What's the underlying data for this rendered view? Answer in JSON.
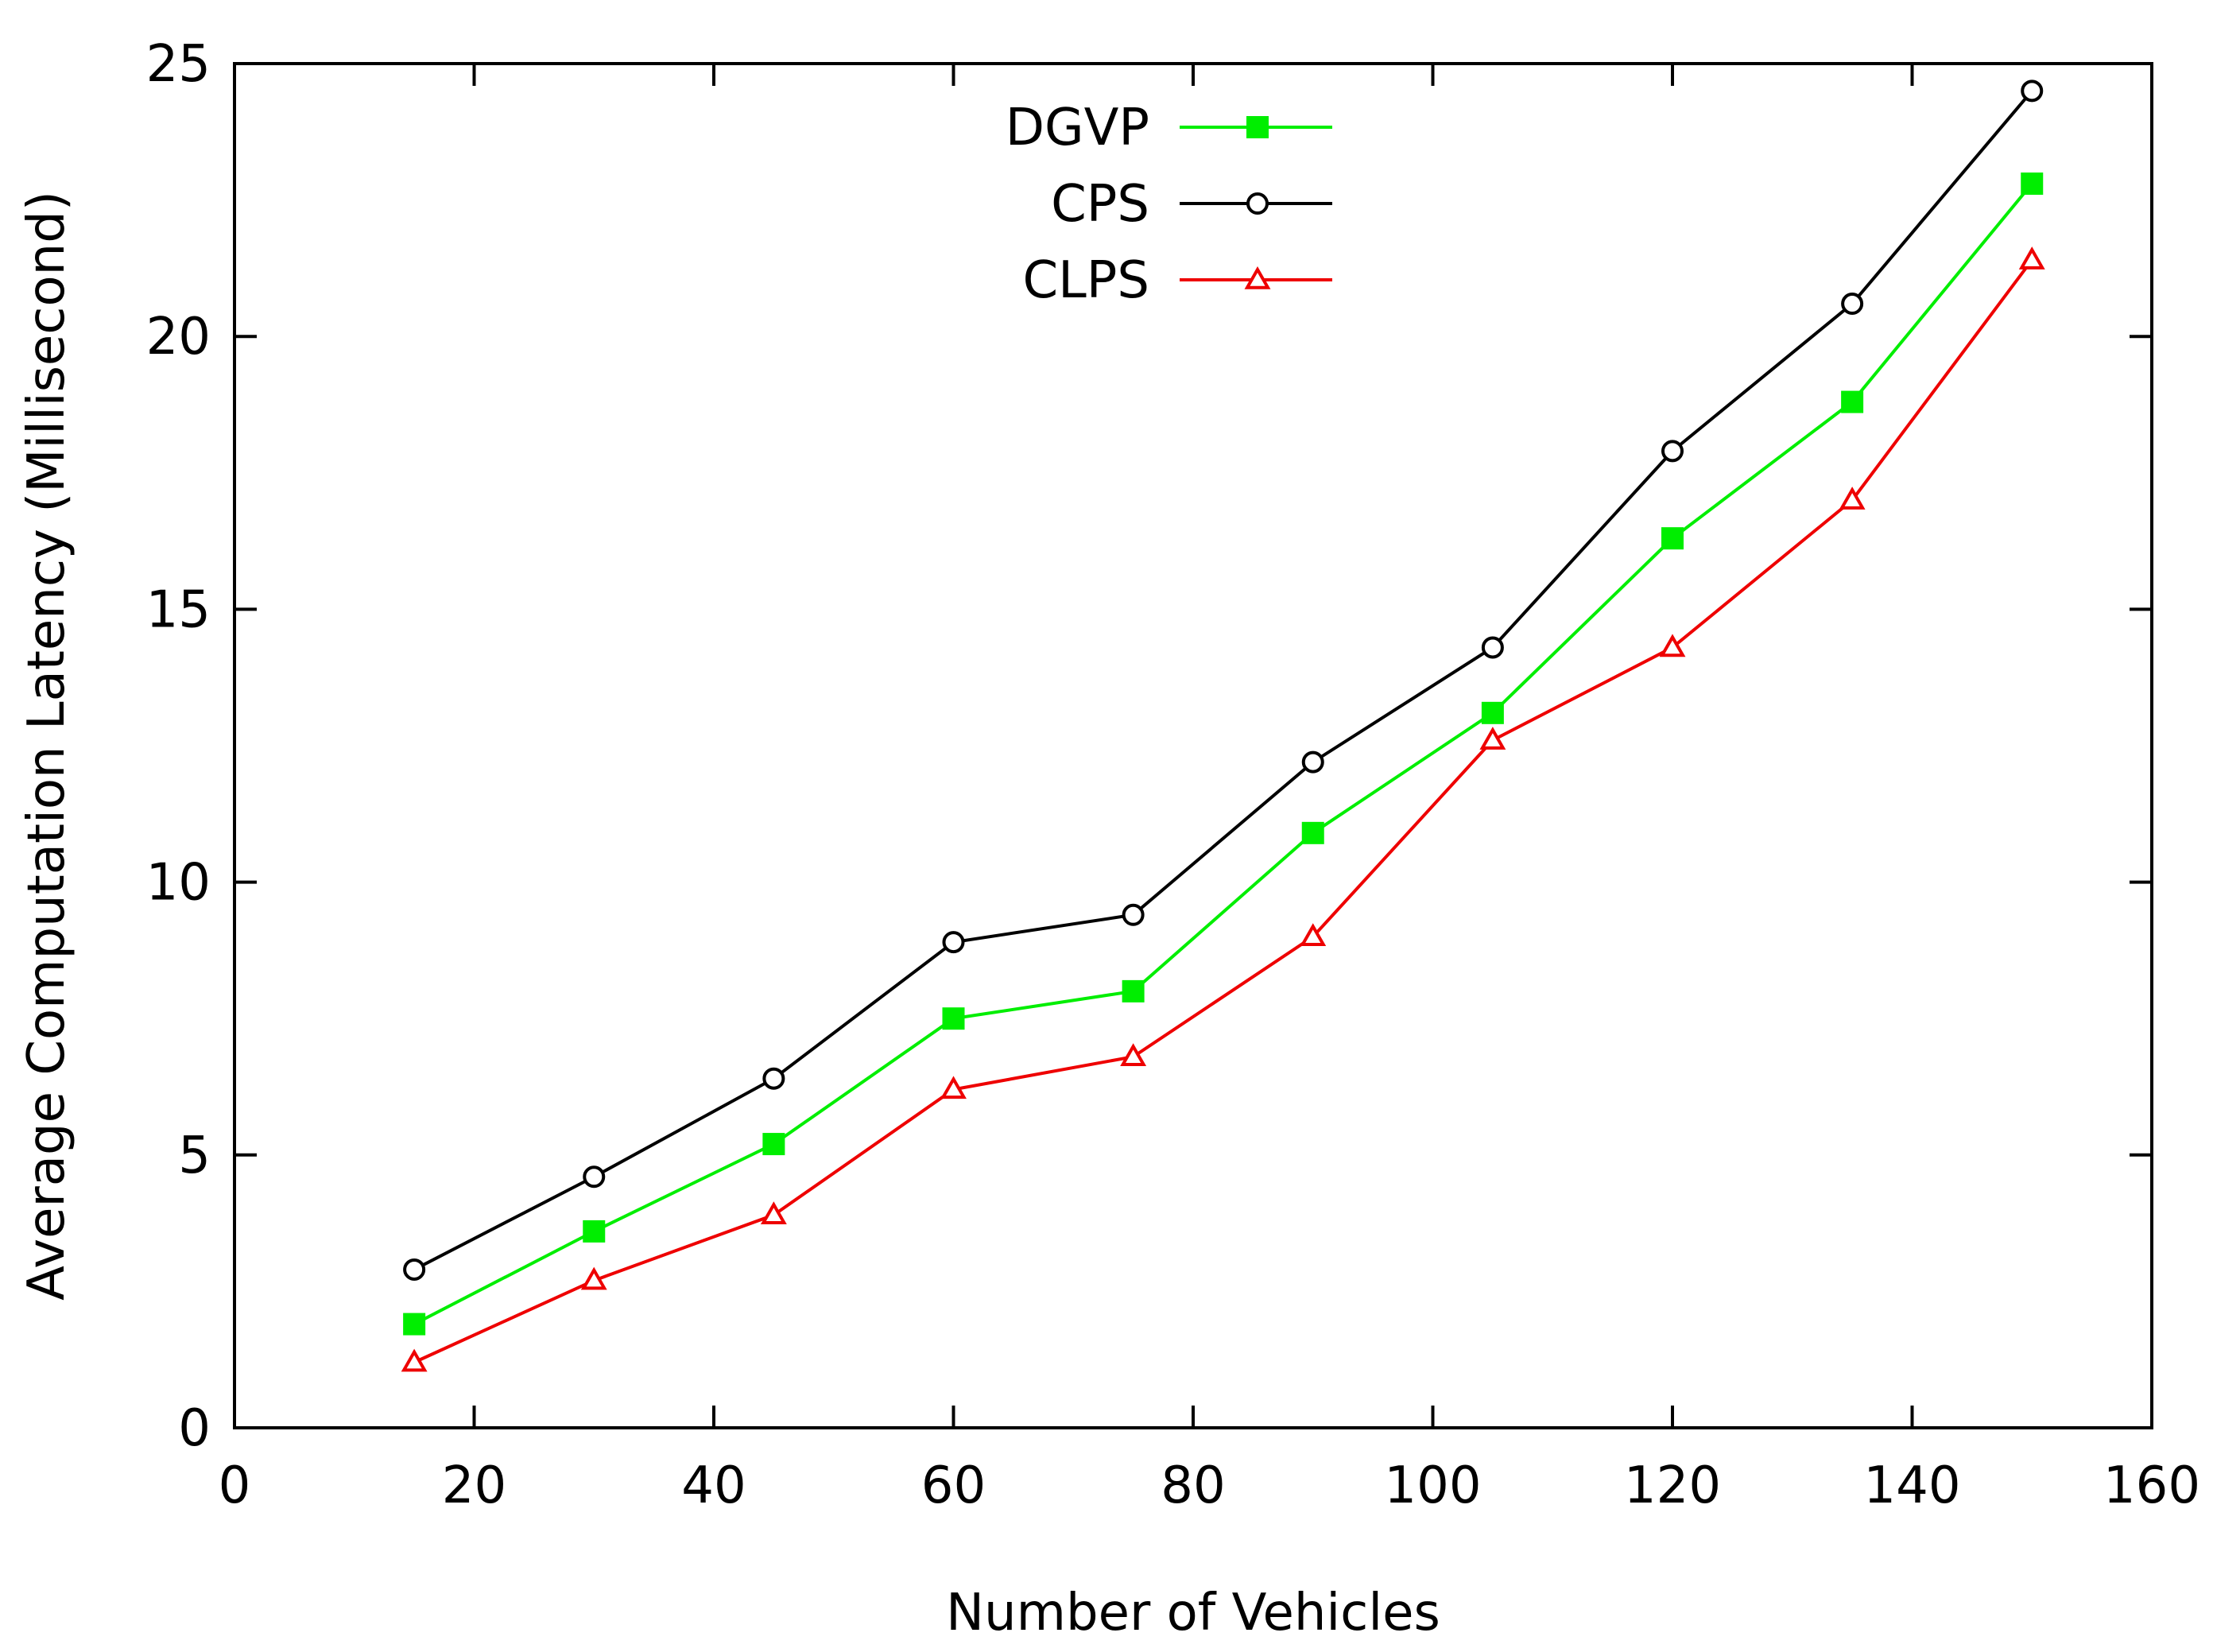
{
  "chart_data": {
    "type": "line",
    "title": "",
    "xlabel": "Number of Vehicles",
    "ylabel": "Average Computation Latency (Millisecond)",
    "xlim": [
      0,
      160
    ],
    "ylim": [
      0,
      25
    ],
    "xticks": [
      0,
      20,
      40,
      60,
      80,
      100,
      120,
      140,
      160
    ],
    "yticks": [
      0,
      5,
      10,
      15,
      20,
      25
    ],
    "grid": false,
    "legend_position": "top-center",
    "x": [
      15,
      30,
      45,
      60,
      75,
      90,
      105,
      120,
      135,
      150
    ],
    "series": [
      {
        "name": "DGVP",
        "color": "#00ee00",
        "marker": "filled-square",
        "values": [
          1.9,
          3.6,
          5.2,
          7.5,
          8.0,
          10.9,
          13.1,
          16.3,
          18.8,
          22.8
        ]
      },
      {
        "name": "CPS",
        "color": "#000000",
        "marker": "open-circle",
        "values": [
          2.9,
          4.6,
          6.4,
          8.9,
          9.4,
          12.2,
          14.3,
          17.9,
          20.6,
          24.5
        ]
      },
      {
        "name": "CLPS",
        "color": "#ee0000",
        "marker": "open-triangle",
        "values": [
          1.2,
          2.7,
          3.9,
          6.2,
          6.8,
          9.0,
          12.6,
          14.3,
          17.0,
          21.4
        ]
      }
    ]
  }
}
